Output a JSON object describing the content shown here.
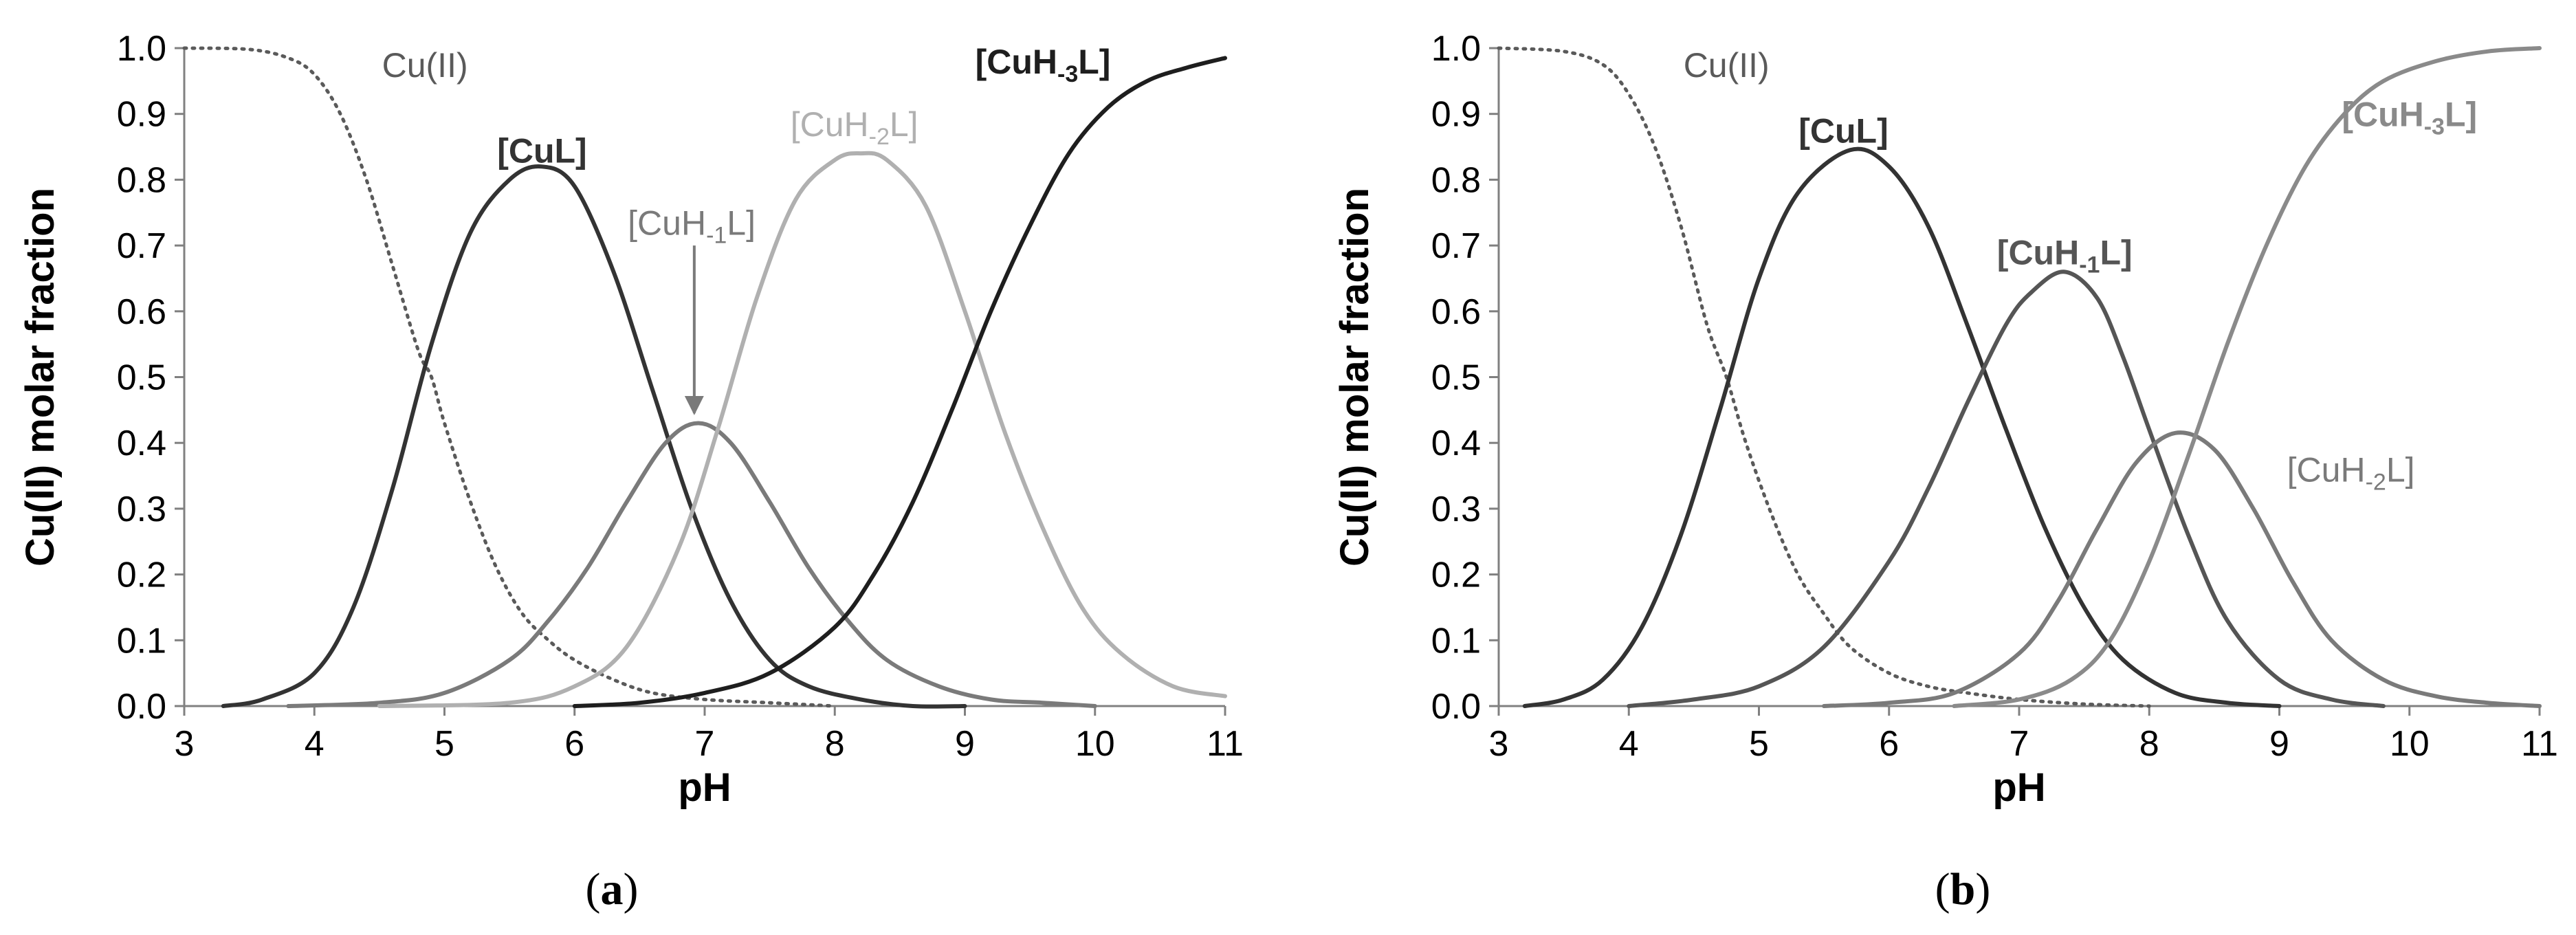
{
  "chart_data": [
    {
      "type": "line",
      "panel": "a",
      "caption_pre": "(",
      "caption_letter": "a",
      "caption_post": ")",
      "xlabel": "pH",
      "ylabel": "Cu(II)  molar fraction",
      "xlim": [
        3,
        11
      ],
      "ylim": [
        0,
        1
      ],
      "xticks": [
        "3",
        "4",
        "5",
        "6",
        "7",
        "8",
        "9",
        "10",
        "11"
      ],
      "yticks": [
        "0.0",
        "0.1",
        "0.2",
        "0.3",
        "0.4",
        "0.5",
        "0.6",
        "0.7",
        "0.8",
        "0.9",
        "1.0"
      ],
      "grid": false,
      "series": [
        {
          "name": "Cu(II)",
          "color": "#5a5a5a",
          "dashed": true,
          "bold": false,
          "label_pH": 4.85,
          "label_y": 0.975,
          "x": [
            3,
            3.5,
            3.8,
            4,
            4.2,
            4.4,
            4.6,
            4.8,
            4.9,
            5,
            5.2,
            5.4,
            5.6,
            5.8,
            6,
            6.3,
            6.6,
            7,
            7.5,
            8
          ],
          "y": [
            1,
            0.998,
            0.985,
            0.96,
            0.9,
            0.8,
            0.67,
            0.54,
            0.5,
            0.43,
            0.31,
            0.21,
            0.14,
            0.1,
            0.07,
            0.04,
            0.02,
            0.01,
            0.005,
            0
          ]
        },
        {
          "name": "[CuL]",
          "color": "#333333",
          "dashed": false,
          "bold": true,
          "label_pH": 5.75,
          "label_y": 0.845,
          "x": [
            3.3,
            3.6,
            4,
            4.3,
            4.6,
            4.9,
            5.2,
            5.5,
            5.75,
            6,
            6.3,
            6.6,
            6.9,
            7.2,
            7.5,
            7.8,
            8.2,
            8.6,
            9
          ],
          "y": [
            0,
            0.01,
            0.05,
            0.15,
            0.33,
            0.55,
            0.72,
            0.8,
            0.82,
            0.79,
            0.66,
            0.48,
            0.3,
            0.16,
            0.07,
            0.03,
            0.01,
            0,
            0
          ]
        },
        {
          "name": "[CuH",
          "sub": "-1",
          "tail": "L]",
          "color": "#7a7a7a",
          "dashed": false,
          "bold": false,
          "label_pH": 6.9,
          "label_y": 0.735,
          "arrow": {
            "from_y": 0.7,
            "to_y": 0.445,
            "pH": 6.92
          },
          "x": [
            3.8,
            4.5,
            5,
            5.5,
            5.8,
            6.1,
            6.4,
            6.7,
            6.95,
            7.2,
            7.5,
            7.8,
            8.1,
            8.4,
            8.8,
            9.2,
            9.6,
            10
          ],
          "y": [
            0,
            0.005,
            0.02,
            0.07,
            0.13,
            0.21,
            0.31,
            0.4,
            0.43,
            0.4,
            0.31,
            0.21,
            0.13,
            0.07,
            0.03,
            0.01,
            0.005,
            0
          ]
        },
        {
          "name": "[CuH",
          "sub": "-2",
          "tail": "L]",
          "color": "#b0b0b0",
          "dashed": false,
          "bold": false,
          "label_pH": 8.15,
          "label_y": 0.885,
          "x": [
            4.5,
            5.5,
            6,
            6.4,
            6.8,
            7.1,
            7.4,
            7.7,
            8,
            8.2,
            8.4,
            8.7,
            9,
            9.3,
            9.6,
            9.9,
            10.2,
            10.6,
            11
          ],
          "y": [
            0,
            0.005,
            0.03,
            0.09,
            0.24,
            0.42,
            0.62,
            0.77,
            0.83,
            0.84,
            0.83,
            0.76,
            0.6,
            0.42,
            0.27,
            0.15,
            0.08,
            0.03,
            0.015
          ]
        },
        {
          "name": "[CuH",
          "sub": "-3",
          "tail": "L]",
          "color": "#1e1e1e",
          "dashed": false,
          "bold": true,
          "label_pH": 9.6,
          "label_y": 0.98,
          "x": [
            6,
            6.5,
            7,
            7.5,
            8,
            8.3,
            8.6,
            8.9,
            9.2,
            9.5,
            9.8,
            10.1,
            10.4,
            10.7,
            11
          ],
          "y": [
            0,
            0.005,
            0.02,
            0.05,
            0.12,
            0.2,
            0.31,
            0.45,
            0.6,
            0.73,
            0.84,
            0.91,
            0.95,
            0.97,
            0.985
          ]
        }
      ]
    },
    {
      "type": "line",
      "panel": "b",
      "caption_pre": "(",
      "caption_letter": "b",
      "caption_post": ")",
      "xlabel": "pH",
      "ylabel": "Cu(II)  molar fraction",
      "xlim": [
        3,
        11
      ],
      "ylim": [
        0,
        1
      ],
      "xticks": [
        "3",
        "4",
        "5",
        "6",
        "7",
        "8",
        "9",
        "10",
        "11"
      ],
      "yticks": [
        "0.0",
        "0.1",
        "0.2",
        "0.3",
        "0.4",
        "0.5",
        "0.6",
        "0.7",
        "0.8",
        "0.9",
        "1.0"
      ],
      "grid": false,
      "series": [
        {
          "name": "Cu(II)",
          "color": "#5a5a5a",
          "dashed": true,
          "bold": false,
          "label_pH": 4.75,
          "label_y": 0.975,
          "x": [
            3,
            3.5,
            3.8,
            4,
            4.2,
            4.4,
            4.6,
            4.75,
            4.9,
            5.1,
            5.3,
            5.5,
            5.7,
            6,
            6.3,
            6.6,
            7,
            7.5,
            8
          ],
          "y": [
            1,
            0.995,
            0.975,
            0.93,
            0.85,
            0.73,
            0.58,
            0.5,
            0.4,
            0.29,
            0.2,
            0.14,
            0.09,
            0.05,
            0.03,
            0.02,
            0.01,
            0.003,
            0
          ]
        },
        {
          "name": "[CuL]",
          "color": "#333333",
          "dashed": false,
          "bold": true,
          "label_pH": 5.65,
          "label_y": 0.875,
          "x": [
            3.2,
            3.5,
            3.8,
            4.1,
            4.4,
            4.7,
            5,
            5.3,
            5.7,
            6,
            6.3,
            6.6,
            6.9,
            7.2,
            7.5,
            7.8,
            8.2,
            8.6,
            9
          ],
          "y": [
            0,
            0.01,
            0.04,
            0.12,
            0.26,
            0.45,
            0.65,
            0.78,
            0.845,
            0.82,
            0.73,
            0.58,
            0.42,
            0.27,
            0.15,
            0.07,
            0.02,
            0.005,
            0
          ]
        },
        {
          "name": "[CuH",
          "sub": "-1",
          "tail": "L]",
          "color": "#555555",
          "dashed": false,
          "bold": true,
          "label_pH": 7.35,
          "label_y": 0.69,
          "x": [
            4,
            4.5,
            5,
            5.5,
            6,
            6.3,
            6.6,
            6.9,
            7.1,
            7.35,
            7.6,
            7.8,
            8,
            8.3,
            8.6,
            9,
            9.4,
            9.8
          ],
          "y": [
            0,
            0.01,
            0.03,
            0.09,
            0.22,
            0.33,
            0.46,
            0.58,
            0.63,
            0.66,
            0.62,
            0.53,
            0.42,
            0.26,
            0.13,
            0.04,
            0.01,
            0
          ]
        },
        {
          "name": "[CuH",
          "sub": "-2",
          "tail": "L]",
          "color": "#7a7a7a",
          "dashed": false,
          "bold": false,
          "label_pH": 9.55,
          "label_y": 0.36,
          "x": [
            5.5,
            6,
            6.5,
            7,
            7.3,
            7.6,
            7.9,
            8.2,
            8.5,
            8.8,
            9.1,
            9.4,
            9.8,
            10.2,
            10.6,
            11
          ],
          "y": [
            0,
            0.005,
            0.02,
            0.08,
            0.16,
            0.27,
            0.37,
            0.415,
            0.39,
            0.3,
            0.19,
            0.1,
            0.04,
            0.015,
            0.005,
            0
          ]
        },
        {
          "name": "[CuH",
          "sub": "-3",
          "tail": "L]",
          "color": "#8a8a8a",
          "dashed": false,
          "bold": true,
          "label_pH": 10.0,
          "label_y": 0.9,
          "x": [
            6.5,
            7,
            7.4,
            7.7,
            8,
            8.3,
            8.6,
            8.9,
            9.2,
            9.5,
            9.8,
            10.2,
            10.6,
            11
          ],
          "y": [
            0,
            0.01,
            0.04,
            0.1,
            0.22,
            0.38,
            0.55,
            0.7,
            0.82,
            0.9,
            0.95,
            0.98,
            0.995,
            1
          ]
        }
      ]
    }
  ]
}
